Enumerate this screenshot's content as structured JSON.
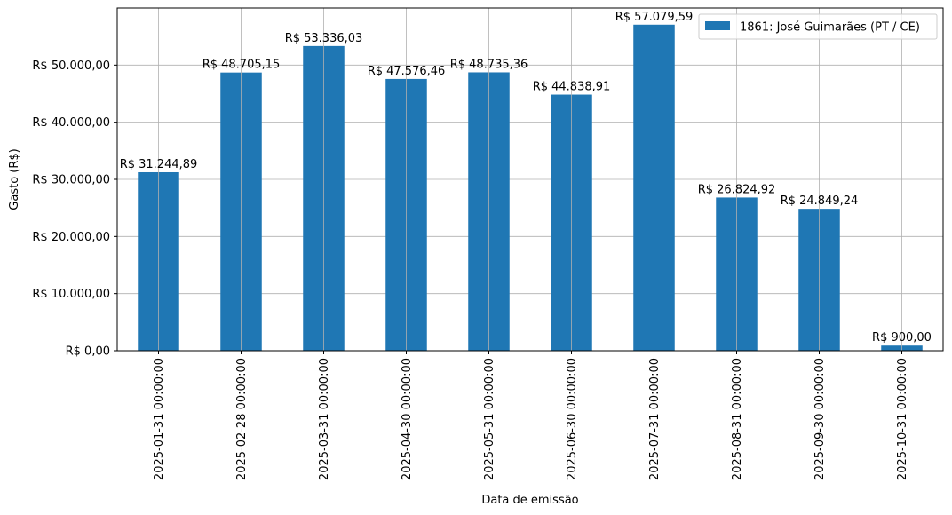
{
  "chart_data": {
    "type": "bar",
    "title": "",
    "xlabel": "Data de emissão",
    "ylabel": "Gasto (R$)",
    "categories": [
      "2025-01-31 00:00:00",
      "2025-02-28 00:00:00",
      "2025-03-31 00:00:00",
      "2025-04-30 00:00:00",
      "2025-05-31 00:00:00",
      "2025-06-30 00:00:00",
      "2025-07-31 00:00:00",
      "2025-08-31 00:00:00",
      "2025-09-30 00:00:00",
      "2025-10-31 00:00:00"
    ],
    "series": [
      {
        "name": "1861: José Guimarães (PT / CE)",
        "color": "#1f77b4",
        "values": [
          31244.89,
          48705.15,
          53336.03,
          47576.46,
          48735.36,
          44838.91,
          57079.59,
          26824.92,
          24849.24,
          900.0
        ],
        "labels": [
          "R$ 31.244,89",
          "R$ 48.705,15",
          "R$ 53.336,03",
          "R$ 47.576,46",
          "R$ 48.735,36",
          "R$ 44.838,91",
          "R$ 57.079,59",
          "R$ 26.824,92",
          "R$ 24.849,24",
          "R$ 900,00"
        ]
      }
    ],
    "ylim": [
      0,
      60000
    ],
    "yticks": [
      0,
      10000,
      20000,
      30000,
      40000,
      50000
    ],
    "ytick_labels": [
      "R$ 0,00",
      "R$ 10.000,00",
      "R$ 20.000,00",
      "R$ 30.000,00",
      "R$ 40.000,00",
      "R$ 50.000,00"
    ],
    "grid": true,
    "legend_position": "top-right"
  }
}
